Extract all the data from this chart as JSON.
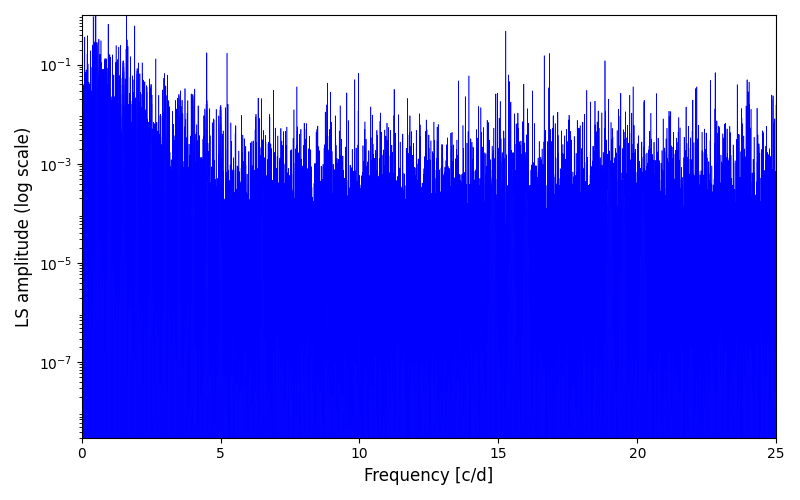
{
  "title": "",
  "xlabel": "Frequency [c/d]",
  "ylabel": "LS amplitude (log scale)",
  "xlim": [
    0,
    25
  ],
  "ylim": [
    3e-09,
    1.0
  ],
  "line_color": "#0000ff",
  "line_width": 0.4,
  "yscale": "log",
  "figsize": [
    8.0,
    5.0
  ],
  "dpi": 100,
  "n_points": 20000,
  "seed": 12345,
  "background_color": "#ffffff",
  "xlabel_fontsize": 12,
  "ylabel_fontsize": 12
}
